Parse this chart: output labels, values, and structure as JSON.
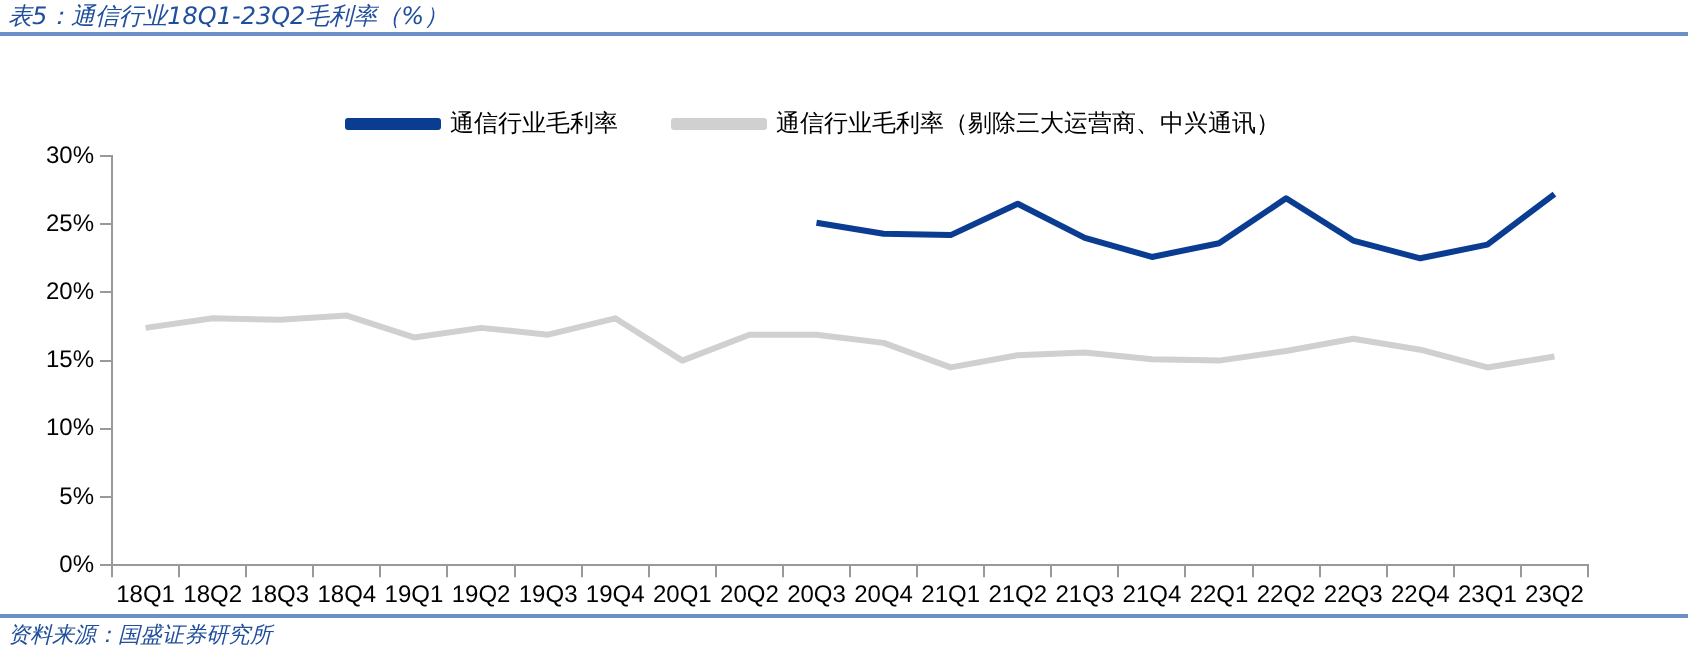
{
  "chart_data": {
    "type": "line",
    "title": "表5：通信行业18Q1-23Q2毛利率（%）",
    "categories": [
      "18Q1",
      "18Q2",
      "18Q3",
      "18Q4",
      "19Q1",
      "19Q2",
      "19Q3",
      "19Q4",
      "20Q1",
      "20Q2",
      "20Q3",
      "20Q4",
      "21Q1",
      "21Q2",
      "21Q3",
      "21Q4",
      "22Q1",
      "22Q2",
      "22Q3",
      "22Q4",
      "23Q1",
      "23Q2"
    ],
    "series": [
      {
        "name": "通信行业毛利率",
        "color": "#0a3d91",
        "values": [
          null,
          null,
          null,
          null,
          null,
          null,
          null,
          null,
          null,
          null,
          25.1,
          24.3,
          24.2,
          26.5,
          24.0,
          22.6,
          23.6,
          26.9,
          23.8,
          22.5,
          23.5,
          27.2
        ]
      },
      {
        "name": "通信行业毛利率（剔除三大运营商、中兴通讯）",
        "color": "#d0d0d0",
        "values": [
          17.4,
          18.1,
          18.0,
          18.3,
          16.7,
          17.4,
          16.9,
          18.1,
          15.0,
          16.9,
          16.9,
          16.3,
          14.5,
          15.4,
          15.6,
          15.1,
          15.0,
          15.7,
          16.6,
          15.8,
          14.5,
          15.3
        ]
      }
    ],
    "ylim": [
      0,
      30
    ],
    "yticks": [
      {
        "value": 0,
        "label": "0%"
      },
      {
        "value": 5,
        "label": "5%"
      },
      {
        "value": 10,
        "label": "10%"
      },
      {
        "value": 15,
        "label": "15%"
      },
      {
        "value": 20,
        "label": "20%"
      },
      {
        "value": 25,
        "label": "25%"
      },
      {
        "value": 30,
        "label": "30%"
      }
    ],
    "grid": false,
    "legend": "top",
    "marker": "none",
    "annotations": [
      "资料来源：国盛证券研究所"
    ]
  }
}
